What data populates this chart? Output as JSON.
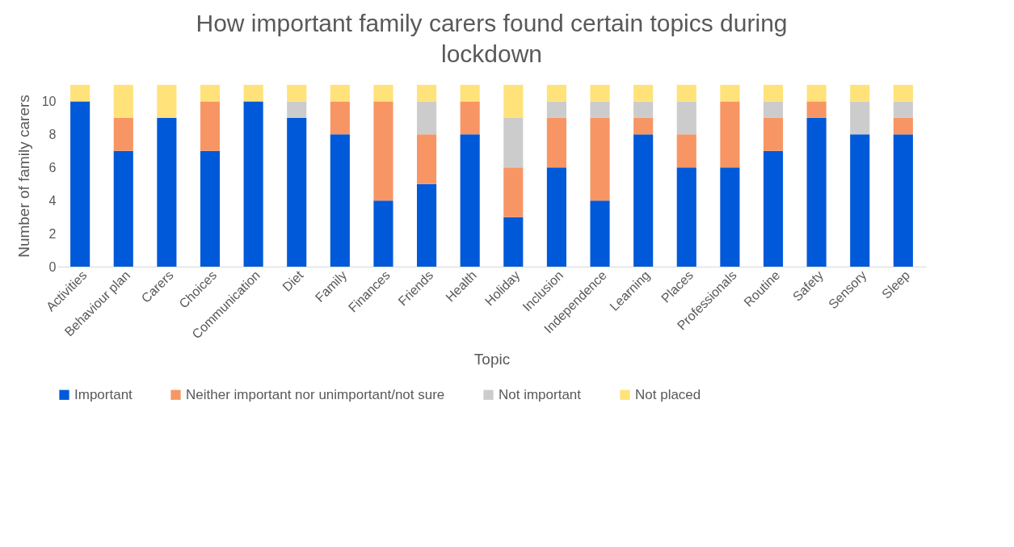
{
  "chart_data": {
    "type": "bar",
    "stacked": true,
    "title": "How important family carers found certain topics during lockdown",
    "xlabel": "Topic",
    "ylabel": "Number of family carers",
    "categories": [
      "Activities",
      "Behaviour plan",
      "Carers",
      "Choices",
      "Communication",
      "Diet",
      "Family",
      "Finances",
      "Friends",
      "Health",
      "Holiday",
      "Inclusion",
      "Independence",
      "Learning",
      "Places",
      "Professionals",
      "Routine",
      "Safety",
      "Sensory",
      "Sleep"
    ],
    "series": [
      {
        "name": "Important",
        "color": "#0059d9",
        "values": [
          10,
          7,
          9,
          7,
          10,
          9,
          8,
          4,
          5,
          8,
          3,
          6,
          4,
          8,
          6,
          6,
          7,
          9,
          8,
          8
        ]
      },
      {
        "name": "Neither important nor unimportant/not sure",
        "color": "#f79664",
        "values": [
          0,
          2,
          0,
          3,
          0,
          0,
          2,
          6,
          3,
          2,
          3,
          3,
          5,
          1,
          2,
          4,
          2,
          1,
          0,
          1
        ]
      },
      {
        "name": "Not important",
        "color": "#cccccc",
        "values": [
          0,
          0,
          0,
          0,
          0,
          1,
          0,
          0,
          2,
          0,
          3,
          1,
          1,
          1,
          2,
          0,
          1,
          0,
          2,
          1
        ]
      },
      {
        "name": "Not placed",
        "color": "#ffe27a",
        "values": [
          1,
          2,
          2,
          1,
          1,
          1,
          1,
          1,
          1,
          1,
          2,
          1,
          1,
          1,
          1,
          1,
          1,
          1,
          1,
          1
        ]
      }
    ],
    "ylim": [
      0,
      11
    ],
    "yticks": [
      0,
      2,
      4,
      6,
      8,
      10
    ],
    "grid": false,
    "legend": "bottom"
  }
}
